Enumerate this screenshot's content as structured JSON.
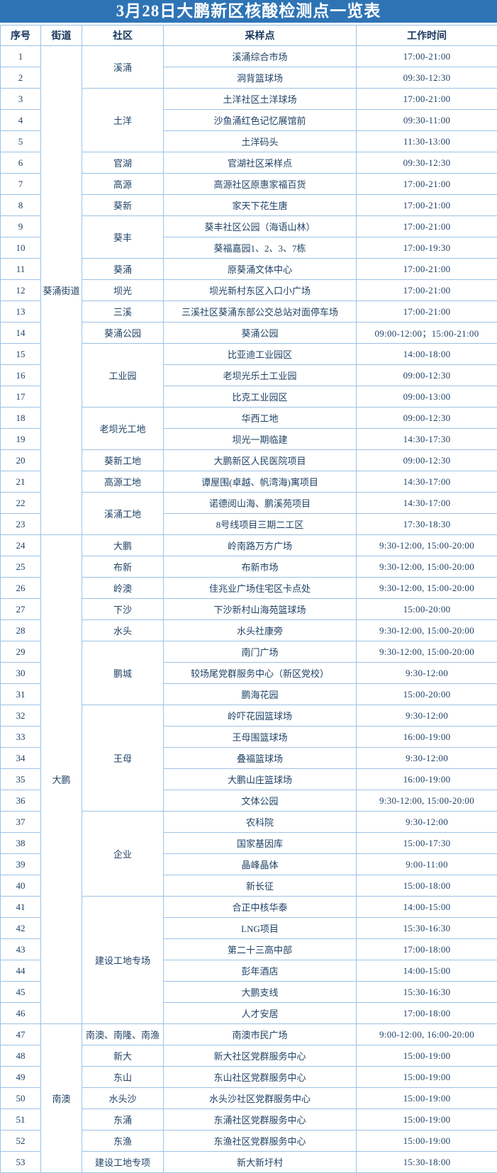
{
  "title": "3月28日大鹏新区核酸检测点一览表",
  "columns": [
    "序号",
    "街道",
    "社区",
    "采样点",
    "工作时间"
  ],
  "colors": {
    "title_background": "#2e74b5",
    "title_text": "#ffffff",
    "border": "#9cc2e5",
    "cell_text": "#1f4266"
  },
  "rows": [
    {
      "no": "1",
      "point": "溪涌综合市场",
      "time": "17:00-21:00",
      "street": {
        "label": "葵涌街道",
        "span": 23
      },
      "community": {
        "label": "溪涌",
        "span": 2
      }
    },
    {
      "no": "2",
      "point": "洞背篮球场",
      "time": "09:30-12:30"
    },
    {
      "no": "3",
      "point": "土洋社区土洋球场",
      "time": "17:00-21:00",
      "community": {
        "label": "土洋",
        "span": 3
      }
    },
    {
      "no": "4",
      "point": "沙鱼涌红色记忆展馆前",
      "time": "09:30-11:00"
    },
    {
      "no": "5",
      "point": "土洋码头",
      "time": "11:30-13:00"
    },
    {
      "no": "6",
      "point": "官湖社区采样点",
      "time": "09:30-12:30",
      "community": {
        "label": "官湖",
        "span": 1
      }
    },
    {
      "no": "7",
      "point": "高源社区原惠家福百货",
      "time": "17:00-21:00",
      "community": {
        "label": "高源",
        "span": 1
      }
    },
    {
      "no": "8",
      "point": "家天下花生唐",
      "time": "17:00-21:00",
      "community": {
        "label": "葵新",
        "span": 1
      }
    },
    {
      "no": "9",
      "point": "葵丰社区公园（海语山林）",
      "time": "17:00-21:00",
      "community": {
        "label": "葵丰",
        "span": 2
      }
    },
    {
      "no": "10",
      "point": "葵福嘉园1、2、3、7栋",
      "time": "17:00-19:30"
    },
    {
      "no": "11",
      "point": "原葵涌文体中心",
      "time": "17:00-21:00",
      "community": {
        "label": "葵涌",
        "span": 1
      }
    },
    {
      "no": "12",
      "point": "坝光新村东区入口小广场",
      "time": "17:00-21:00",
      "community": {
        "label": "坝光",
        "span": 1
      }
    },
    {
      "no": "13",
      "point": "三溪社区葵涌东部公交总站对面停车场",
      "time": "17:00-21:00",
      "community": {
        "label": "三溪",
        "span": 1
      }
    },
    {
      "no": "14",
      "point": "葵涌公园",
      "time": "09:00-12:00；15:00-21:00",
      "community": {
        "label": "葵涌公园",
        "span": 1
      }
    },
    {
      "no": "15",
      "point": "比亚迪工业园区",
      "time": "14:00-18:00",
      "community": {
        "label": "工业园",
        "span": 3
      }
    },
    {
      "no": "16",
      "point": "老坝光乐土工业园",
      "time": "09:00-12:30"
    },
    {
      "no": "17",
      "point": "比克工业园区",
      "time": "09:00-13:00"
    },
    {
      "no": "18",
      "point": "华西工地",
      "time": "09:00-12:30",
      "community": {
        "label": "老坝光工地",
        "span": 2
      }
    },
    {
      "no": "19",
      "point": "坝光一期临建",
      "time": "14:30-17:30"
    },
    {
      "no": "20",
      "point": "大鹏新区人民医院项目",
      "time": "09:00-12:30",
      "community": {
        "label": "葵新工地",
        "span": 1
      }
    },
    {
      "no": "21",
      "point": "谭屋围(卓越、帆湾海)寓项目",
      "time": "14:30-17:00",
      "community": {
        "label": "高源工地",
        "span": 1
      }
    },
    {
      "no": "22",
      "point": "诺德阅山海、鹏溪苑项目",
      "time": "14:30-17:00",
      "community": {
        "label": "溪涌工地",
        "span": 2
      }
    },
    {
      "no": "23",
      "point": "8号线项目三期二工区",
      "time": "17:30-18:30"
    },
    {
      "no": "24",
      "point": "岭南路万方广场",
      "time": "9:30-12:00, 15:00-20:00",
      "street": {
        "label": "大鹏",
        "span": 23
      },
      "community": {
        "label": "大鹏",
        "span": 1
      }
    },
    {
      "no": "25",
      "point": "布新市场",
      "time": "9:30-12:00, 15:00-20:00",
      "community": {
        "label": "布新",
        "span": 1
      }
    },
    {
      "no": "26",
      "point": "佳兆业广场住宅区卡点处",
      "time": "9:30-12:00, 15:00-20:00",
      "community": {
        "label": "岭澳",
        "span": 1
      }
    },
    {
      "no": "27",
      "point": "下沙新村山海苑篮球场",
      "time": "15:00-20:00",
      "community": {
        "label": "下沙",
        "span": 1
      }
    },
    {
      "no": "28",
      "point": "水头社康旁",
      "time": "9:30-12:00, 15:00-20:00",
      "community": {
        "label": "水头",
        "span": 1
      }
    },
    {
      "no": "29",
      "point": "南门广场",
      "time": "9:30-12:00, 15:00-20:00",
      "community": {
        "label": "鹏城",
        "span": 3
      }
    },
    {
      "no": "30",
      "point": "较场尾党群服务中心（新区党校）",
      "time": "9:30-12:00"
    },
    {
      "no": "31",
      "point": "鹏海花园",
      "time": "15:00-20:00"
    },
    {
      "no": "32",
      "point": "岭吓花园篮球场",
      "time": "9:30-12:00",
      "community": {
        "label": "王母",
        "span": 5
      }
    },
    {
      "no": "33",
      "point": "王母围篮球场",
      "time": "16:00-19:00"
    },
    {
      "no": "34",
      "point": "叠福篮球场",
      "time": "9:30-12:00"
    },
    {
      "no": "35",
      "point": "大鹏山庄篮球场",
      "time": "16:00-19:00"
    },
    {
      "no": "36",
      "point": "文体公园",
      "time": "9:30-12:00, 15:00-20:00"
    },
    {
      "no": "37",
      "point": "农科院",
      "time": "9:30-12:00",
      "community": {
        "label": "企业",
        "span": 4
      }
    },
    {
      "no": "38",
      "point": "国家基因库",
      "time": "15:00-17:30"
    },
    {
      "no": "39",
      "point": "晶峰晶体",
      "time": "9:00-11:00"
    },
    {
      "no": "40",
      "point": "新长征",
      "time": "15:00-18:00"
    },
    {
      "no": "41",
      "point": "合正中核华泰",
      "time": "14:00-15:00",
      "community": {
        "label": "建设工地专场",
        "span": 6
      }
    },
    {
      "no": "42",
      "point": "LNG项目",
      "time": "15:30-16:30"
    },
    {
      "no": "43",
      "point": "第二十三高中部",
      "time": "17:00-18:00"
    },
    {
      "no": "44",
      "point": "彭年酒店",
      "time": "14:00-15:00"
    },
    {
      "no": "45",
      "point": "大鹏支线",
      "time": "15:30-16:30"
    },
    {
      "no": "46",
      "point": "人才安居",
      "time": "17:00-18:00"
    },
    {
      "no": "47",
      "point": "南澳市民广场",
      "time": "9:00-12:00, 16:00-20:00",
      "street": {
        "label": "南澳",
        "span": 7
      },
      "community": {
        "label": "南澳、南隆、南渔",
        "span": 1
      }
    },
    {
      "no": "48",
      "point": "新大社区党群服务中心",
      "time": "15:00-19:00",
      "community": {
        "label": "新大",
        "span": 1
      }
    },
    {
      "no": "49",
      "point": "东山社区党群服务中心",
      "time": "15:00-19:00",
      "community": {
        "label": "东山",
        "span": 1
      }
    },
    {
      "no": "50",
      "point": "水头沙社区党群服务中心",
      "time": "15:00-19:00",
      "community": {
        "label": "水头沙",
        "span": 1
      }
    },
    {
      "no": "51",
      "point": "东涌社区党群服务中心",
      "time": "15:00-19:00",
      "community": {
        "label": "东涌",
        "span": 1
      }
    },
    {
      "no": "52",
      "point": "东渔社区党群服务中心",
      "time": "15:00-19:00",
      "community": {
        "label": "东渔",
        "span": 1
      }
    },
    {
      "no": "53",
      "point": "新大新圩村",
      "time": "15:30-18:00",
      "community": {
        "label": "建设工地专项",
        "span": 1
      }
    }
  ]
}
